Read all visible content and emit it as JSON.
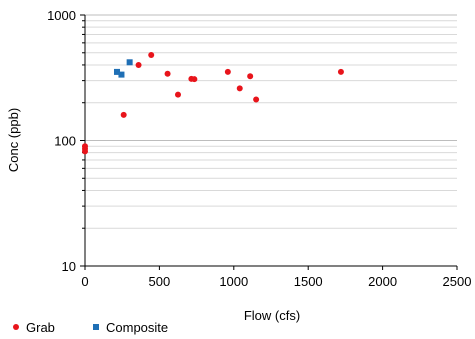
{
  "chart_data": {
    "type": "scatter",
    "xlabel": "Flow (cfs)",
    "ylabel": "Conc (ppb)",
    "xlim": [
      0,
      2500
    ],
    "ylim": [
      10,
      1000
    ],
    "yscale": "log",
    "x_ticks": [
      {
        "value": 0,
        "label": "0"
      },
      {
        "value": 500,
        "label": "500"
      },
      {
        "value": 1000,
        "label": "1000"
      },
      {
        "value": 1500,
        "label": "1500"
      },
      {
        "value": 2000,
        "label": "2000"
      },
      {
        "value": 2500,
        "label": "2500"
      }
    ],
    "y_ticks": [
      {
        "value": 10,
        "label": "10"
      },
      {
        "value": 100,
        "label": "100"
      },
      {
        "value": 1000,
        "label": "1000"
      }
    ],
    "grid": "horizontal minor (log decades)",
    "legend_position": "bottom-left",
    "series": [
      {
        "name": "Grab",
        "marker": "circle",
        "color": "#e8141b",
        "points": [
          {
            "x": 0,
            "y": 82
          },
          {
            "x": 0,
            "y": 86
          },
          {
            "x": 0,
            "y": 90
          },
          {
            "x": 260,
            "y": 160
          },
          {
            "x": 360,
            "y": 400
          },
          {
            "x": 445,
            "y": 480
          },
          {
            "x": 555,
            "y": 340
          },
          {
            "x": 625,
            "y": 232
          },
          {
            "x": 715,
            "y": 310
          },
          {
            "x": 735,
            "y": 308
          },
          {
            "x": 960,
            "y": 352
          },
          {
            "x": 1040,
            "y": 260
          },
          {
            "x": 1110,
            "y": 325
          },
          {
            "x": 1150,
            "y": 212
          },
          {
            "x": 1720,
            "y": 352
          }
        ]
      },
      {
        "name": "Composite",
        "marker": "square",
        "color": "#1f6fb5",
        "points": [
          {
            "x": 215,
            "y": 352
          },
          {
            "x": 245,
            "y": 335
          },
          {
            "x": 300,
            "y": 420
          }
        ]
      }
    ]
  }
}
